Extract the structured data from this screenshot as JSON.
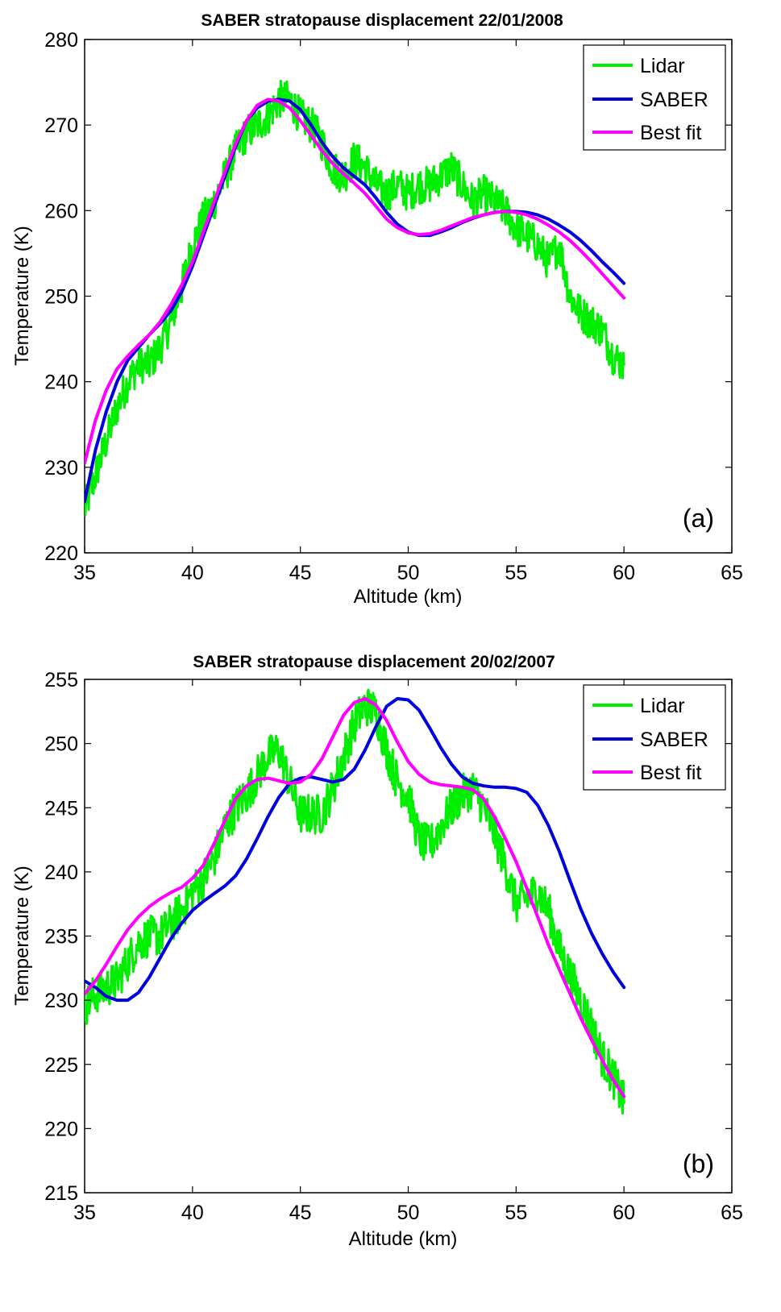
{
  "chart_data": [
    {
      "type": "line",
      "title": "SABER stratopause displacement 22/01/2008",
      "xlabel": "Altitude (km)",
      "ylabel": "Temperature (K)",
      "panel_label": "(a)",
      "xlim": [
        35,
        65
      ],
      "ylim": [
        220,
        280
      ],
      "xticks": [
        35,
        40,
        45,
        50,
        55,
        60,
        65
      ],
      "yticks": [
        220,
        230,
        240,
        250,
        260,
        270,
        280
      ],
      "legend_position": "top-right",
      "series": [
        {
          "name": "Lidar",
          "color": "#00ee00",
          "noise": 2.2,
          "x": [
            35,
            35.5,
            36,
            36.5,
            37,
            37.5,
            38,
            38.5,
            39,
            39.5,
            40,
            40.5,
            41,
            41.5,
            42,
            42.5,
            43,
            43.5,
            44,
            44.5,
            45,
            45.5,
            46,
            46.5,
            47,
            47.5,
            48,
            48.5,
            49,
            49.5,
            50,
            50.5,
            51,
            51.5,
            52,
            52.5,
            53,
            53.5,
            54,
            54.5,
            55,
            55.5,
            56,
            56.5,
            57,
            57.5,
            58,
            58.5,
            59,
            59.5,
            60
          ],
          "y": [
            225,
            229,
            233,
            237,
            240,
            242,
            242,
            244,
            247,
            251,
            256,
            259,
            261,
            264,
            267,
            269,
            270,
            271,
            273,
            273,
            271,
            270,
            268,
            265,
            264,
            266,
            265,
            263,
            262,
            263,
            262,
            263,
            263,
            264,
            265,
            263,
            261,
            262,
            261,
            260,
            258,
            257,
            256,
            254,
            256,
            250,
            248,
            247,
            246,
            243,
            242
          ]
        },
        {
          "name": "SABER",
          "color": "#0000dd",
          "x": [
            35,
            35.5,
            36,
            36.5,
            37,
            37.5,
            38,
            38.5,
            39,
            39.5,
            40,
            40.5,
            41,
            41.5,
            42,
            42.5,
            43,
            43.5,
            44,
            44.5,
            45,
            45.5,
            46,
            46.5,
            47,
            47.5,
            48,
            48.5,
            49,
            49.5,
            50,
            50.5,
            51,
            51.5,
            52,
            52.5,
            53,
            53.5,
            54,
            54.5,
            55,
            55.5,
            56,
            56.5,
            57,
            57.5,
            58,
            58.5,
            59,
            59.5,
            60
          ],
          "y": [
            226,
            232,
            236.5,
            240,
            242.5,
            244,
            245.5,
            246.8,
            248.3,
            250.5,
            253.5,
            257,
            260.5,
            264,
            267.5,
            270.5,
            272,
            272.8,
            273,
            272.8,
            271.8,
            270,
            268,
            266.3,
            265,
            264,
            263,
            261.5,
            259.8,
            258.4,
            257.5,
            257.1,
            257.1,
            257.5,
            258,
            258.6,
            259.1,
            259.5,
            259.8,
            259.9,
            259.9,
            259.8,
            259.5,
            259,
            258.3,
            257.5,
            256.5,
            255.3,
            254,
            252.8,
            251.5
          ]
        },
        {
          "name": "Best fit",
          "color": "#ff00ff",
          "x": [
            35,
            35.5,
            36,
            36.5,
            37,
            37.5,
            38,
            38.5,
            39,
            39.5,
            40,
            40.5,
            41,
            41.5,
            42,
            42.5,
            43,
            43.5,
            44,
            44.5,
            45,
            45.5,
            46,
            46.5,
            47,
            47.5,
            48,
            48.5,
            49,
            49.5,
            50,
            50.5,
            51,
            51.5,
            52,
            52.5,
            53,
            53.5,
            54,
            54.5,
            55,
            55.5,
            56,
            56.5,
            57,
            57.5,
            58,
            58.5,
            59,
            59.5,
            60
          ],
          "y": [
            230.5,
            235.5,
            239,
            241.5,
            243,
            244.3,
            245.5,
            247,
            249,
            251.3,
            254,
            257.5,
            261,
            264.5,
            267.8,
            270.5,
            272.3,
            273,
            272.8,
            272,
            270.5,
            268.8,
            267,
            265.5,
            264.3,
            263.2,
            262,
            260.5,
            259,
            258,
            257.4,
            257.2,
            257.3,
            257.7,
            258.2,
            258.7,
            259.2,
            259.5,
            259.8,
            259.9,
            259.8,
            259.5,
            259,
            258.3,
            257.5,
            256.5,
            255.3,
            254,
            252.6,
            251.2,
            249.8
          ]
        }
      ]
    },
    {
      "type": "line",
      "title": "SABER stratopause displacement 20/02/2007",
      "xlabel": "Altitude (km)",
      "ylabel": "Temperature (K)",
      "panel_label": "(b)",
      "xlim": [
        35,
        65
      ],
      "ylim": [
        215,
        255
      ],
      "xticks": [
        35,
        40,
        45,
        50,
        55,
        60,
        65
      ],
      "yticks": [
        215,
        220,
        225,
        230,
        235,
        240,
        245,
        250,
        255
      ],
      "legend_position": "top-right",
      "series": [
        {
          "name": "Lidar",
          "color": "#00ee00",
          "noise": 1.6,
          "x": [
            35,
            35.5,
            36,
            36.5,
            37,
            37.5,
            38,
            38.5,
            39,
            39.5,
            40,
            40.5,
            41,
            41.5,
            42,
            42.5,
            43,
            43.5,
            44,
            44.5,
            45,
            45.5,
            46,
            46.5,
            47,
            47.5,
            48,
            48.5,
            49,
            49.5,
            50,
            50.5,
            51,
            51.5,
            52,
            52.5,
            53,
            53.5,
            54,
            54.5,
            55,
            55.5,
            56,
            56.5,
            57,
            57.5,
            58,
            58.5,
            59,
            59.5,
            60
          ],
          "y": [
            229.5,
            230.5,
            231,
            231.5,
            233,
            234.5,
            235,
            235,
            236,
            237,
            238.5,
            239.5,
            241,
            243.5,
            245,
            246,
            247.5,
            249,
            249.5,
            247,
            244.5,
            244.5,
            244.5,
            246.5,
            249,
            251.5,
            253,
            252.5,
            249.5,
            247,
            246,
            242.5,
            242,
            243.5,
            245,
            246,
            246.5,
            245,
            243,
            240.5,
            237.5,
            238,
            238.5,
            237,
            234,
            232,
            230,
            228,
            225.5,
            224,
            222
          ]
        },
        {
          "name": "SABER",
          "color": "#0000dd",
          "x": [
            35,
            35.5,
            36,
            36.5,
            37,
            37.5,
            38,
            38.5,
            39,
            39.5,
            40,
            40.5,
            41,
            41.5,
            42,
            42.5,
            43,
            43.5,
            44,
            44.5,
            45,
            45.5,
            46,
            46.5,
            47,
            47.5,
            48,
            48.5,
            49,
            49.5,
            50,
            50.5,
            51,
            51.5,
            52,
            52.5,
            53,
            53.5,
            54,
            54.5,
            55,
            55.5,
            56,
            56.5,
            57,
            57.5,
            58,
            58.5,
            59,
            59.5,
            60
          ],
          "y": [
            231.5,
            231,
            230.3,
            230,
            230,
            230.6,
            231.8,
            233.3,
            234.8,
            236,
            237,
            237.7,
            238.3,
            238.9,
            239.7,
            241,
            242.6,
            244.3,
            245.8,
            246.9,
            247.3,
            247.4,
            247.2,
            247,
            247.2,
            248,
            249.5,
            251.3,
            252.9,
            253.5,
            253.4,
            252.6,
            251.2,
            249.7,
            248.4,
            247.4,
            246.9,
            246.7,
            246.6,
            246.6,
            246.5,
            246.2,
            245.2,
            243.6,
            241.6,
            239.3,
            237.1,
            235.2,
            233.6,
            232.2,
            231
          ]
        },
        {
          "name": "Best fit",
          "color": "#ff00ff",
          "x": [
            35,
            35.5,
            36,
            36.5,
            37,
            37.5,
            38,
            38.5,
            39,
            39.5,
            40,
            40.5,
            41,
            41.5,
            42,
            42.5,
            43,
            43.5,
            44,
            44.5,
            45,
            45.5,
            46,
            46.5,
            47,
            47.5,
            48,
            48.5,
            49,
            49.5,
            50,
            50.5,
            51,
            51.5,
            52,
            52.5,
            53,
            53.5,
            54,
            54.5,
            55,
            55.5,
            56,
            56.5,
            57,
            57.5,
            58,
            58.5,
            59,
            59.5,
            60
          ],
          "y": [
            230.5,
            231.5,
            232.8,
            234.2,
            235.5,
            236.5,
            237.3,
            237.9,
            238.4,
            238.8,
            239.5,
            240.5,
            242.2,
            244,
            245.7,
            246.7,
            247.2,
            247.3,
            247.1,
            246.9,
            247,
            247.6,
            248.8,
            250.5,
            252.2,
            253.2,
            253.5,
            253,
            251.8,
            250.1,
            248.6,
            247.6,
            247,
            246.8,
            246.7,
            246.6,
            246.4,
            245.7,
            244.3,
            242.6,
            240.8,
            238.7,
            236.5,
            234.3,
            232.4,
            230.5,
            228.6,
            226.9,
            225.3,
            223.8,
            222.5
          ]
        }
      ]
    }
  ]
}
